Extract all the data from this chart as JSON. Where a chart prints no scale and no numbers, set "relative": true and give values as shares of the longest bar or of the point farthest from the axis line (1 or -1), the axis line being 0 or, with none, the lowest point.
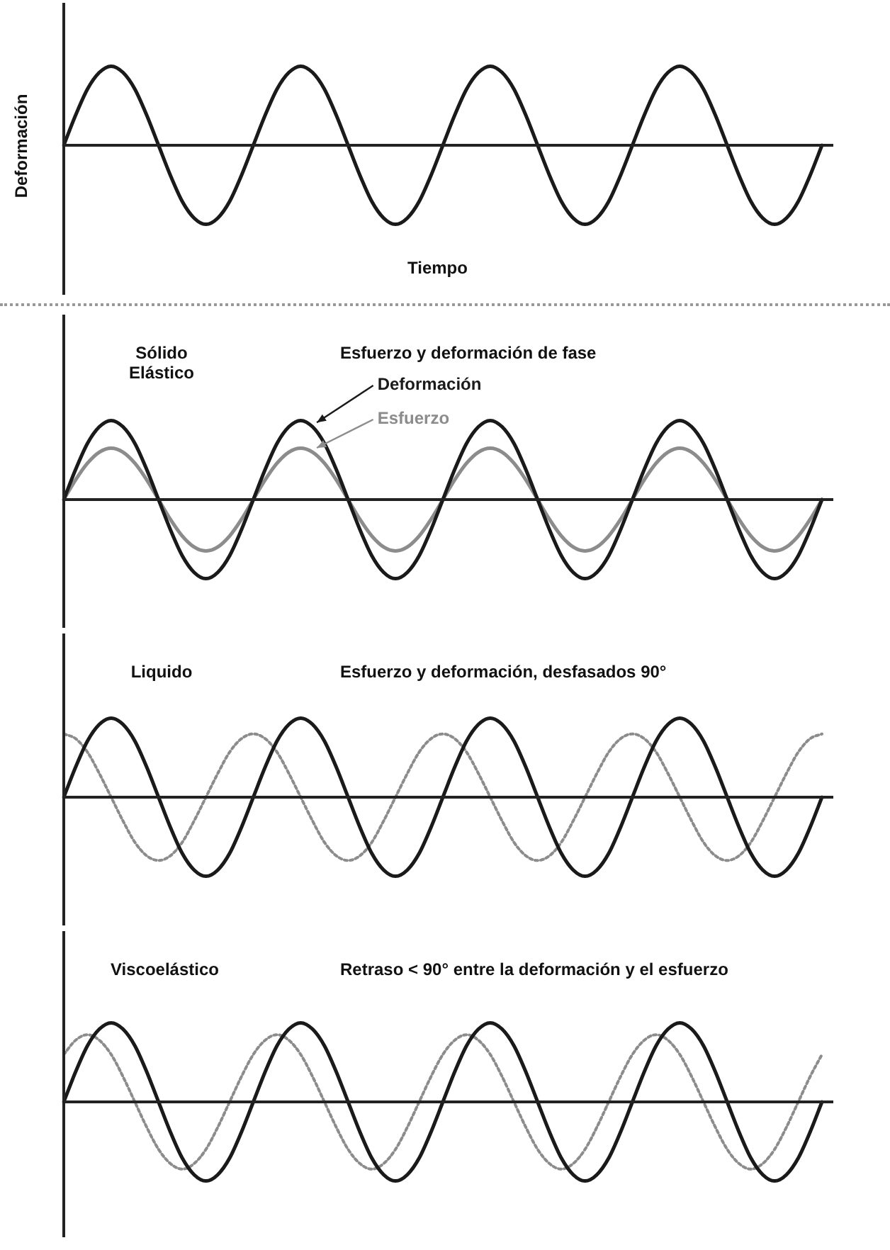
{
  "chart_data": [
    {
      "type": "line",
      "relative": true,
      "ylabel": "Deformación",
      "xlabel": "Tiempo",
      "legend": false,
      "marker": "none",
      "categories": [
        null,
        null,
        null,
        null,
        null,
        null,
        null,
        null,
        null,
        null,
        null,
        null,
        null,
        null,
        null,
        null,
        null,
        null,
        null,
        null,
        null,
        null,
        null,
        null,
        null,
        null,
        null,
        null,
        null,
        null,
        null,
        null,
        null,
        null,
        null,
        null,
        null,
        null,
        null,
        null,
        null,
        null,
        null,
        null,
        null,
        null,
        null,
        null,
        null,
        null,
        null,
        null,
        null,
        null,
        null,
        null,
        null,
        null,
        null,
        null,
        null,
        null,
        null,
        null,
        null
      ],
      "series": [
        {
          "color": "#1a1a1a",
          "values": [
            0,
            0.38,
            0.71,
            0.92,
            1,
            0.92,
            0.71,
            0.38,
            0,
            -0.38,
            -0.71,
            -0.92,
            -1,
            -0.92,
            -0.71,
            -0.38,
            0,
            0.38,
            0.71,
            0.92,
            1,
            0.92,
            0.71,
            0.38,
            0,
            -0.38,
            -0.71,
            -0.92,
            -1,
            -0.92,
            -0.71,
            -0.38,
            0,
            0.38,
            0.71,
            0.92,
            1,
            0.92,
            0.71,
            0.38,
            0,
            -0.38,
            -0.71,
            -0.92,
            -1,
            -0.92,
            -0.71,
            -0.38,
            0,
            0.38,
            0.71,
            0.92,
            1,
            0.92,
            0.71,
            0.38,
            0,
            -0.38,
            -0.71,
            -0.92,
            -1,
            -0.92,
            -0.71,
            -0.38,
            0
          ]
        }
      ]
    },
    {
      "type": "line",
      "relative": true,
      "title": "Sólido Elástico",
      "subtitle": "Esfuerzo y deformación de fase",
      "legend": false,
      "marker": "none",
      "categories": [
        null,
        null,
        null,
        null,
        null,
        null,
        null,
        null,
        null,
        null,
        null,
        null,
        null,
        null,
        null,
        null,
        null,
        null,
        null,
        null,
        null,
        null,
        null,
        null,
        null,
        null,
        null,
        null,
        null,
        null,
        null,
        null,
        null,
        null,
        null,
        null,
        null,
        null,
        null,
        null,
        null,
        null,
        null,
        null,
        null,
        null,
        null,
        null,
        null,
        null,
        null,
        null,
        null,
        null,
        null,
        null,
        null,
        null,
        null,
        null,
        null,
        null,
        null,
        null,
        null
      ],
      "series": [
        {
          "name": "Deformación",
          "color": "#1a1a1a",
          "values": [
            0,
            0.38,
            0.71,
            0.92,
            1,
            0.92,
            0.71,
            0.38,
            0,
            -0.38,
            -0.71,
            -0.92,
            -1,
            -0.92,
            -0.71,
            -0.38,
            0,
            0.38,
            0.71,
            0.92,
            1,
            0.92,
            0.71,
            0.38,
            0,
            -0.38,
            -0.71,
            -0.92,
            -1,
            -0.92,
            -0.71,
            -0.38,
            0,
            0.38,
            0.71,
            0.92,
            1,
            0.92,
            0.71,
            0.38,
            0,
            -0.38,
            -0.71,
            -0.92,
            -1,
            -0.92,
            -0.71,
            -0.38,
            0,
            0.38,
            0.71,
            0.92,
            1,
            0.92,
            0.71,
            0.38,
            0,
            -0.38,
            -0.71,
            -0.92,
            -1,
            -0.92,
            -0.71,
            -0.38,
            0
          ]
        },
        {
          "name": "Esfuerzo",
          "color": "#8c8c8c",
          "values": [
            0,
            0.25,
            0.46,
            0.6,
            0.65,
            0.6,
            0.46,
            0.25,
            0,
            -0.25,
            -0.46,
            -0.6,
            -0.65,
            -0.6,
            -0.46,
            -0.25,
            0,
            0.25,
            0.46,
            0.6,
            0.65,
            0.6,
            0.46,
            0.25,
            0,
            -0.25,
            -0.46,
            -0.6,
            -0.65,
            -0.6,
            -0.46,
            -0.25,
            0,
            0.25,
            0.46,
            0.6,
            0.65,
            0.6,
            0.46,
            0.25,
            0,
            -0.25,
            -0.46,
            -0.6,
            -0.65,
            -0.6,
            -0.46,
            -0.25,
            0,
            0.25,
            0.46,
            0.6,
            0.65,
            0.6,
            0.46,
            0.25,
            0,
            -0.25,
            -0.46,
            -0.6,
            -0.65,
            -0.6,
            -0.46,
            -0.25,
            0
          ]
        }
      ]
    },
    {
      "type": "line",
      "relative": true,
      "title": "Liquido",
      "subtitle": "Esfuerzo y deformación, desfasados 90°",
      "legend": false,
      "marker": "none",
      "categories": [
        null,
        null,
        null,
        null,
        null,
        null,
        null,
        null,
        null,
        null,
        null,
        null,
        null,
        null,
        null,
        null,
        null,
        null,
        null,
        null,
        null,
        null,
        null,
        null,
        null,
        null,
        null,
        null,
        null,
        null,
        null,
        null,
        null,
        null,
        null,
        null,
        null,
        null,
        null,
        null,
        null,
        null,
        null,
        null,
        null,
        null,
        null,
        null,
        null,
        null,
        null,
        null,
        null,
        null,
        null,
        null,
        null,
        null,
        null,
        null,
        null,
        null,
        null,
        null,
        null
      ],
      "series": [
        {
          "color": "#1a1a1a",
          "values": [
            0,
            0.38,
            0.71,
            0.92,
            1,
            0.92,
            0.71,
            0.38,
            0,
            -0.38,
            -0.71,
            -0.92,
            -1,
            -0.92,
            -0.71,
            -0.38,
            0,
            0.38,
            0.71,
            0.92,
            1,
            0.92,
            0.71,
            0.38,
            0,
            -0.38,
            -0.71,
            -0.92,
            -1,
            -0.92,
            -0.71,
            -0.38,
            0,
            0.38,
            0.71,
            0.92,
            1,
            0.92,
            0.71,
            0.38,
            0,
            -0.38,
            -0.71,
            -0.92,
            -1,
            -0.92,
            -0.71,
            -0.38,
            0,
            0.38,
            0.71,
            0.92,
            1,
            0.92,
            0.71,
            0.38,
            0,
            -0.38,
            -0.71,
            -0.92,
            -1,
            -0.92,
            -0.71,
            -0.38,
            0
          ]
        },
        {
          "color": "#8c8c8c",
          "line_style": "dotted",
          "values": [
            0.8,
            0.74,
            0.57,
            0.3,
            0,
            -0.3,
            -0.57,
            -0.74,
            -0.8,
            -0.74,
            -0.57,
            -0.3,
            0,
            0.3,
            0.57,
            0.74,
            0.8,
            0.74,
            0.57,
            0.3,
            0,
            -0.3,
            -0.57,
            -0.74,
            -0.8,
            -0.74,
            -0.57,
            -0.3,
            0,
            0.3,
            0.57,
            0.74,
            0.8,
            0.74,
            0.57,
            0.3,
            0,
            -0.3,
            -0.57,
            -0.74,
            -0.8,
            -0.74,
            -0.57,
            -0.3,
            0,
            0.3,
            0.57,
            0.74,
            0.8,
            0.74,
            0.57,
            0.3,
            0,
            -0.3,
            -0.57,
            -0.74,
            -0.8,
            -0.74,
            -0.57,
            -0.3,
            0,
            0.3,
            0.57,
            0.74,
            0.8
          ]
        }
      ]
    },
    {
      "type": "line",
      "relative": true,
      "title": "Viscoelástico",
      "subtitle": "Retraso < 90° entre la deformación y el esfuerzo",
      "legend": false,
      "marker": "none",
      "categories": [
        null,
        null,
        null,
        null,
        null,
        null,
        null,
        null,
        null,
        null,
        null,
        null,
        null,
        null,
        null,
        null,
        null,
        null,
        null,
        null,
        null,
        null,
        null,
        null,
        null,
        null,
        null,
        null,
        null,
        null,
        null,
        null,
        null,
        null,
        null,
        null,
        null,
        null,
        null,
        null,
        null,
        null,
        null,
        null,
        null,
        null,
        null,
        null,
        null,
        null,
        null,
        null,
        null,
        null,
        null,
        null,
        null,
        null,
        null,
        null,
        null,
        null,
        null,
        null,
        null
      ],
      "series": [
        {
          "color": "#1a1a1a",
          "values": [
            0,
            0.38,
            0.71,
            0.92,
            1,
            0.92,
            0.71,
            0.38,
            0,
            -0.38,
            -0.71,
            -0.92,
            -1,
            -0.92,
            -0.71,
            -0.38,
            0,
            0.38,
            0.71,
            0.92,
            1,
            0.92,
            0.71,
            0.38,
            0,
            -0.38,
            -0.71,
            -0.92,
            -1,
            -0.92,
            -0.71,
            -0.38,
            0,
            0.38,
            0.71,
            0.92,
            1,
            0.92,
            0.71,
            0.38,
            0,
            -0.38,
            -0.71,
            -0.92,
            -1,
            -0.92,
            -0.71,
            -0.38,
            0,
            0.38,
            0.71,
            0.92,
            1,
            0.92,
            0.71,
            0.38,
            0,
            -0.38,
            -0.71,
            -0.92,
            -1,
            -0.92,
            -0.71,
            -0.38,
            0
          ]
        },
        {
          "color": "#8c8c8c",
          "line_style": "dotted",
          "values": [
            0.6,
            0.78,
            0.85,
            0.78,
            0.6,
            0.32,
            0,
            -0.32,
            -0.6,
            -0.78,
            -0.85,
            -0.78,
            -0.6,
            -0.32,
            0,
            0.32,
            0.6,
            0.78,
            0.85,
            0.78,
            0.6,
            0.32,
            0,
            -0.32,
            -0.6,
            -0.78,
            -0.85,
            -0.78,
            -0.6,
            -0.32,
            0,
            0.32,
            0.6,
            0.78,
            0.85,
            0.78,
            0.6,
            0.32,
            0,
            -0.32,
            -0.6,
            -0.78,
            -0.85,
            -0.78,
            -0.6,
            -0.32,
            0,
            0.32,
            0.6,
            0.78,
            0.85,
            0.78,
            0.6,
            0.32,
            0,
            -0.32,
            -0.6,
            -0.78,
            -0.85,
            -0.78,
            -0.6,
            -0.32,
            0,
            0.32,
            0.6
          ]
        }
      ]
    }
  ]
}
